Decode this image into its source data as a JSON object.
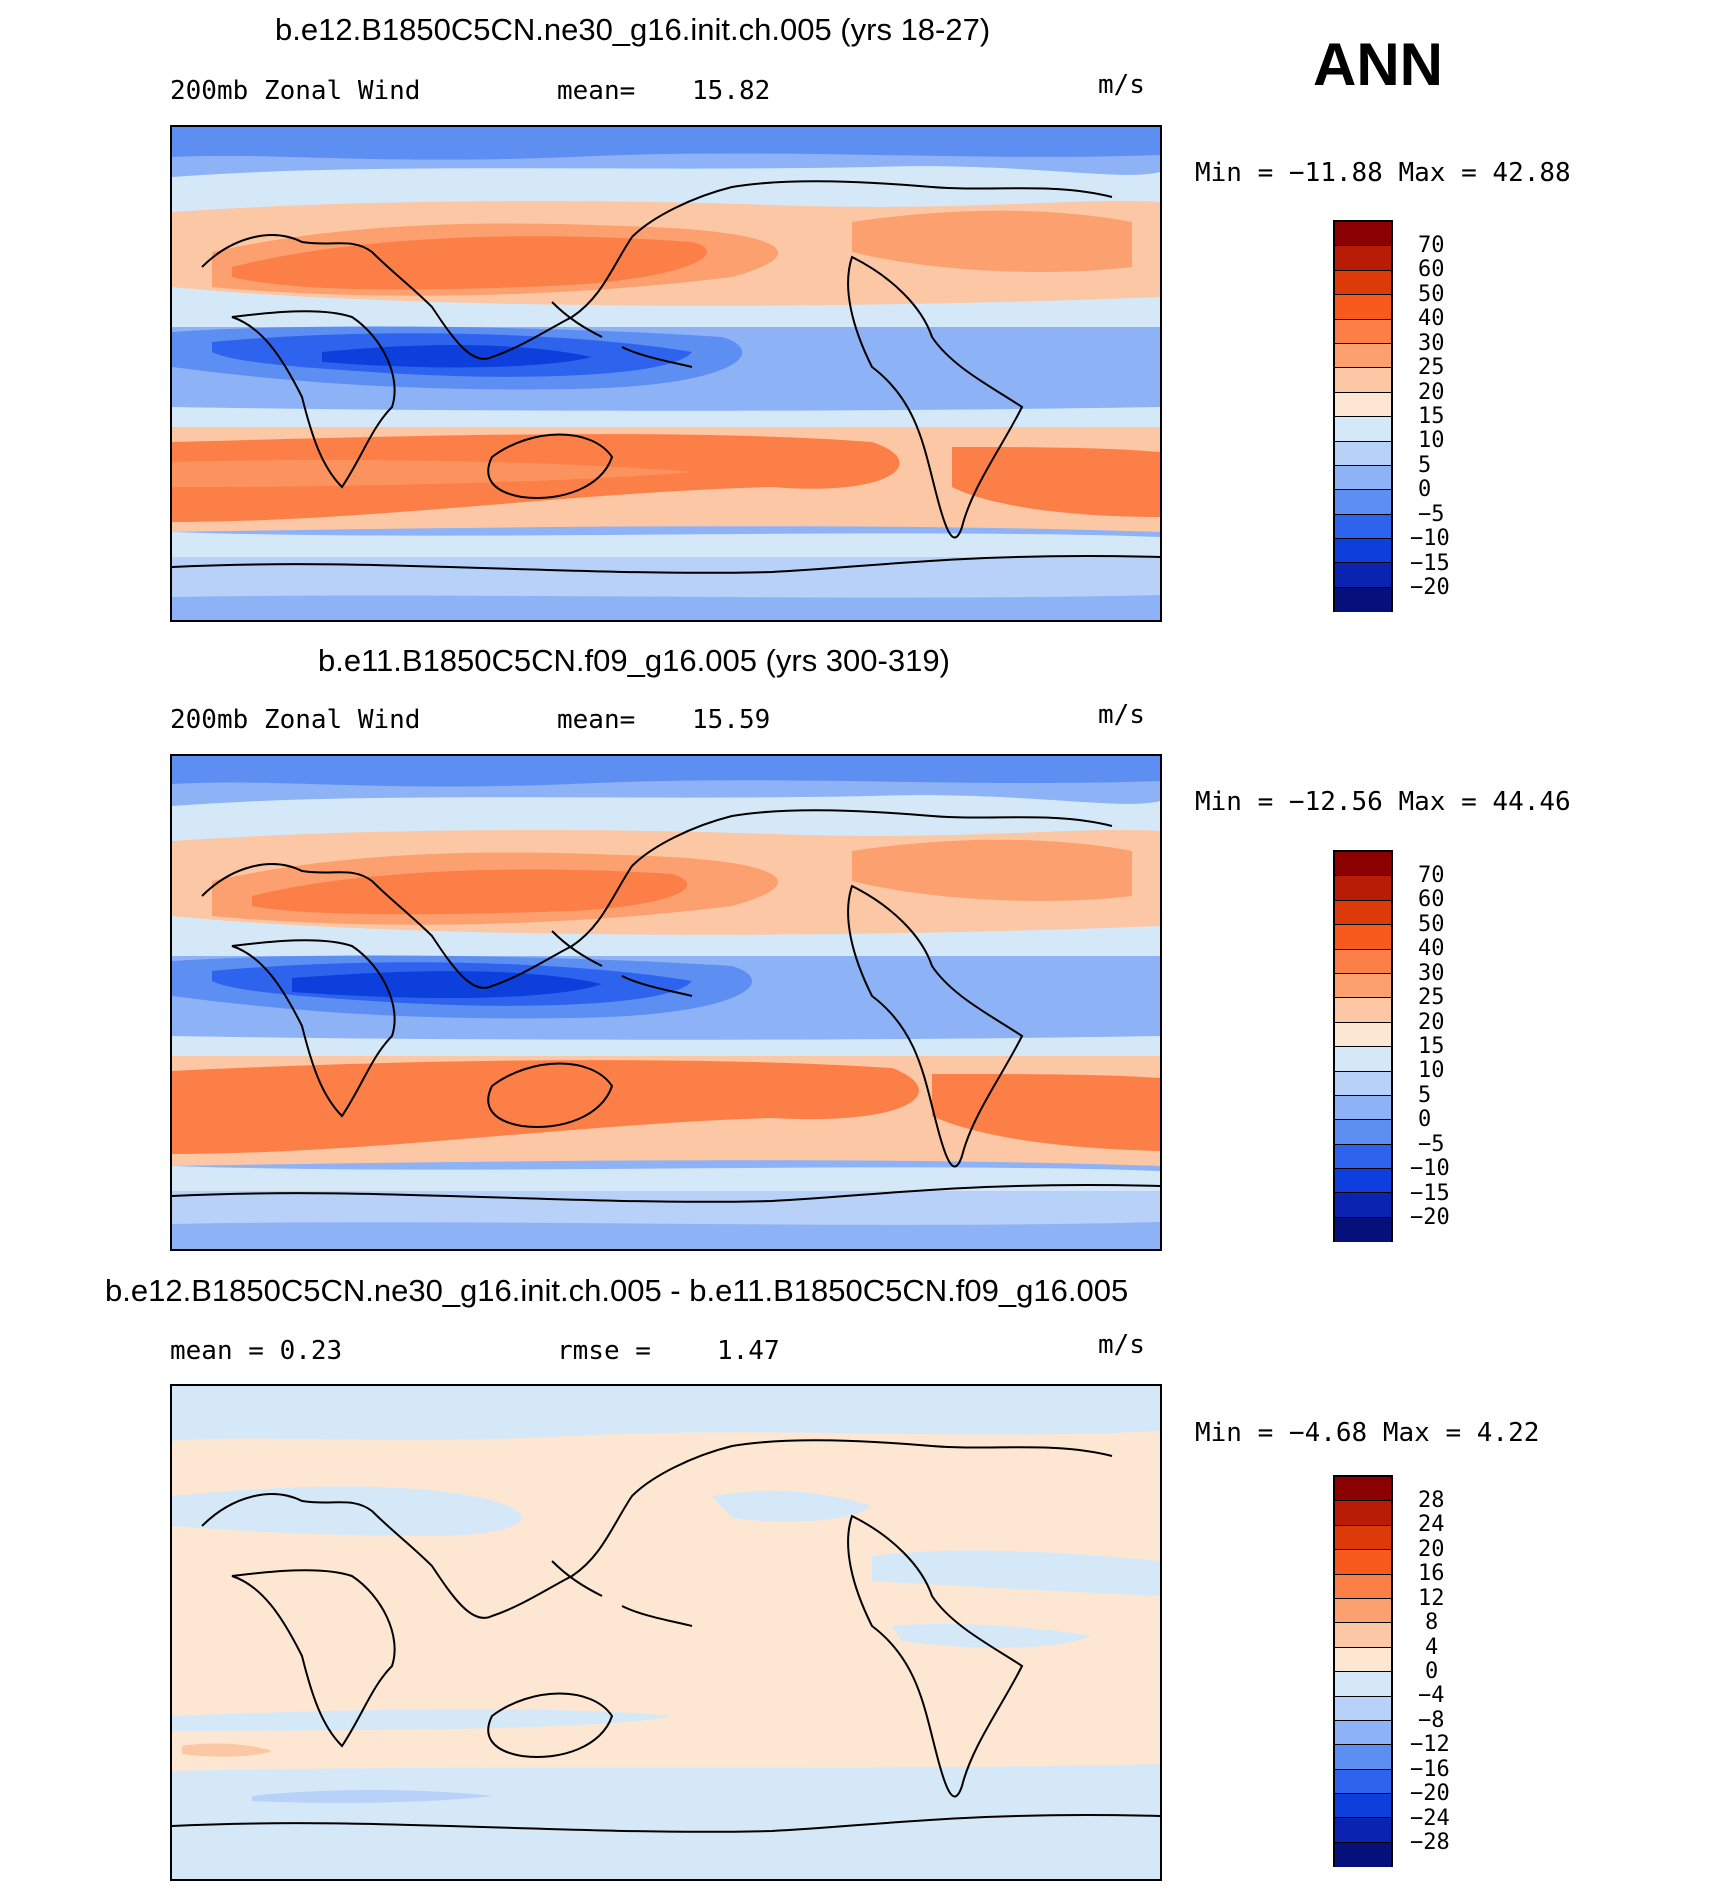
{
  "season": "ANN",
  "panels": [
    {
      "title": "b.e12.B1850C5CN.ne30_g16.init.ch.005 (yrs 18-27)",
      "left_label": "200mb Zonal Wind",
      "stat_label": "mean=",
      "stat_value": "15.82",
      "units": "m/s",
      "minmax_label": "Min  = −11.88 Max =   42.88"
    },
    {
      "title": "b.e11.B1850C5CN.f09_g16.005 (yrs 300-319)",
      "left_label": "200mb Zonal Wind",
      "stat_label": "mean=",
      "stat_value": "15.59",
      "units": "m/s",
      "minmax_label": "Min  = −12.56 Max =   44.46"
    },
    {
      "title": "b.e12.B1850C5CN.ne30_g16.init.ch.005 - b.e11.B1850C5CN.f09_g16.005",
      "left_label": "mean =     0.23",
      "stat_label": "rmse =",
      "stat_value": "1.47",
      "units": "m/s",
      "minmax_label": "Min  =   −4.68 Max =    4.22"
    }
  ],
  "colorbars": {
    "field": {
      "labels": [
        "70",
        "60",
        "50",
        "40",
        "30",
        "25",
        "20",
        "15",
        "10",
        "5",
        "0",
        "−5",
        "−10",
        "−15",
        "−20"
      ],
      "colors": [
        "#8b0000",
        "#b81c06",
        "#dd3a0a",
        "#f85a1e",
        "#fc7f48",
        "#fca070",
        "#fcc7a4",
        "#fde7d2",
        "#d5e8f8",
        "#b7d1f8",
        "#8db2f6",
        "#5d8ef2",
        "#2e63ee",
        "#0d3fdc",
        "#0a23b0",
        "#06107a"
      ]
    },
    "diff": {
      "labels": [
        "28",
        "24",
        "20",
        "16",
        "12",
        "8",
        "4",
        "0",
        "−4",
        "−8",
        "−12",
        "−16",
        "−20",
        "−24",
        "−28"
      ],
      "colors": [
        "#8b0000",
        "#b81c06",
        "#dd3a0a",
        "#f85a1e",
        "#fc7f48",
        "#fca070",
        "#fcc7a4",
        "#fde7d2",
        "#d5e8f8",
        "#b7d1f8",
        "#8db2f6",
        "#5d8ef2",
        "#2e63ee",
        "#0d3fdc",
        "#0a23b0",
        "#06107a"
      ]
    }
  }
}
